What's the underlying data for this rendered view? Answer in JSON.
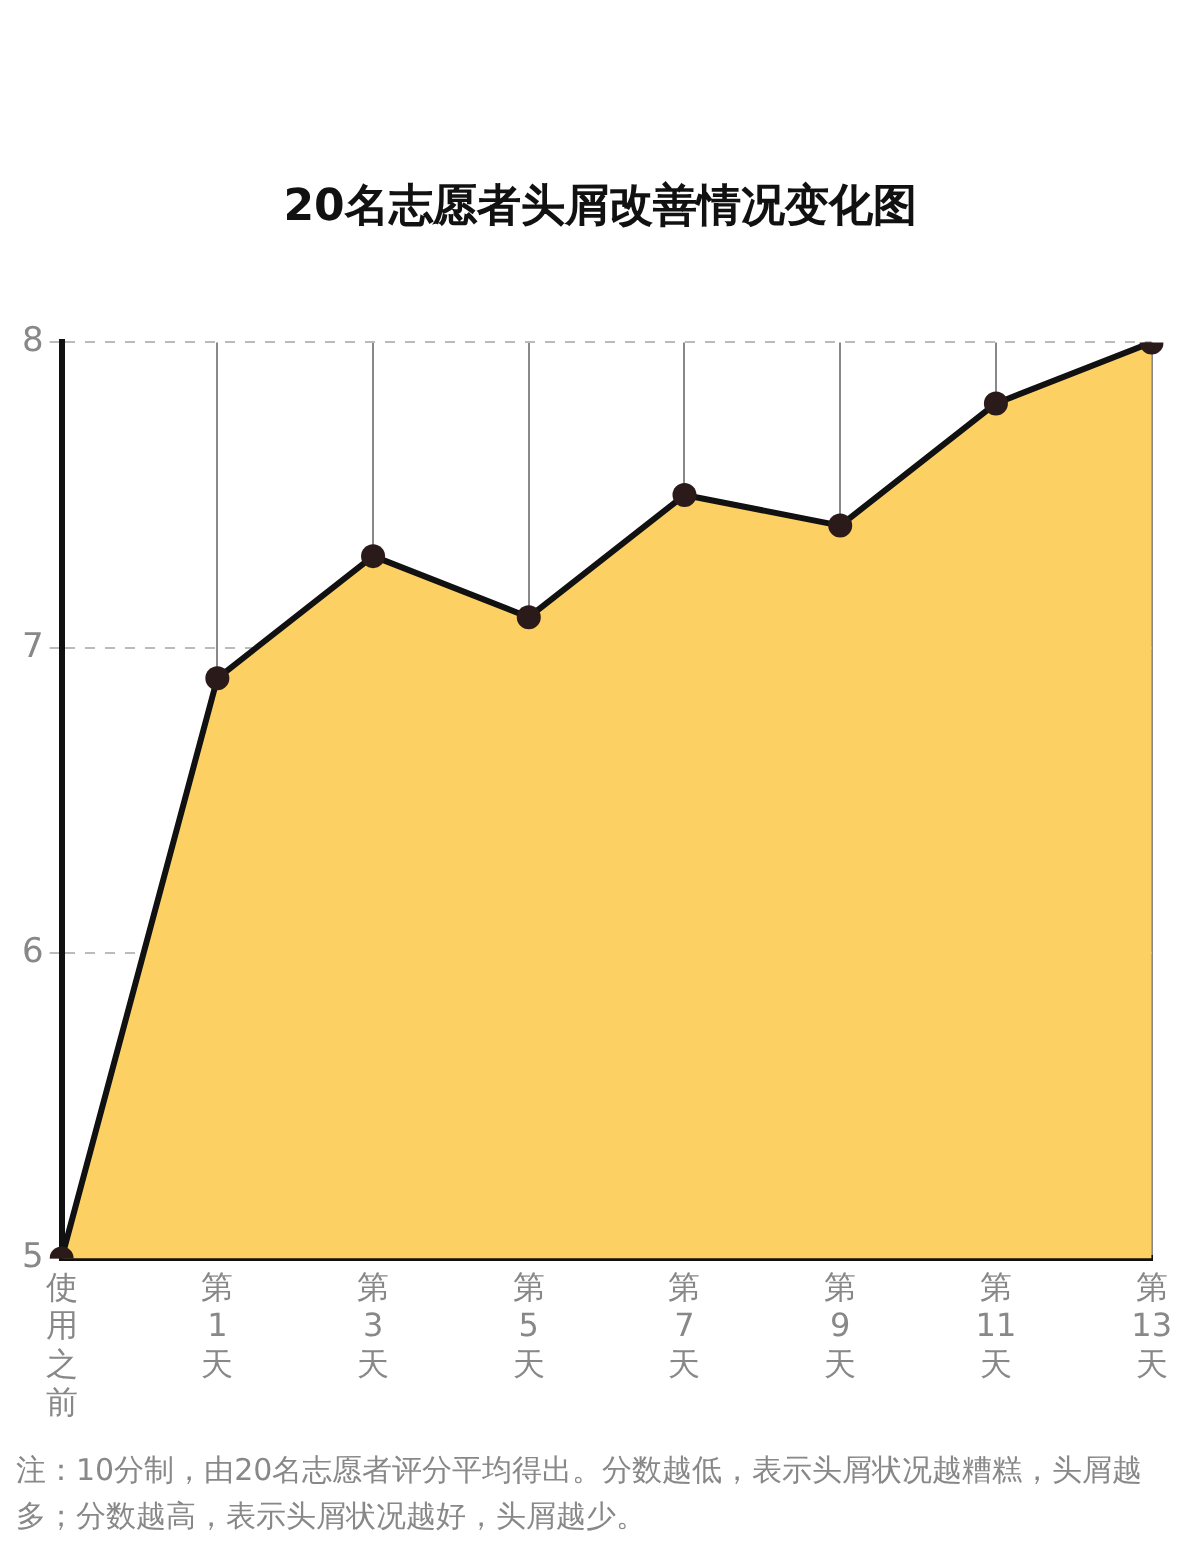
{
  "chart_data": {
    "type": "area",
    "title": "20名志愿者头屑改善情况变化图",
    "categories": [
      "使用之前",
      "第1天",
      "第3天",
      "第5天",
      "第7天",
      "第9天",
      "第11天",
      "第13天"
    ],
    "series": [
      {
        "color": "#fcd062",
        "values": [
          5,
          6.9,
          7.3,
          7.1,
          7.5,
          7.4,
          7.8,
          8.0
        ]
      }
    ],
    "ylim": [
      5,
      8
    ],
    "yticks": [
      5,
      6,
      7,
      8
    ],
    "grid": true,
    "marker": "circle",
    "legend": false,
    "annotations": [
      "注：10分制，由20名志愿者评分平均得出。分数越低，表示头屑状况越糟糕，头屑越多；分数越高，表示头屑状况越好，头屑越少。"
    ]
  }
}
